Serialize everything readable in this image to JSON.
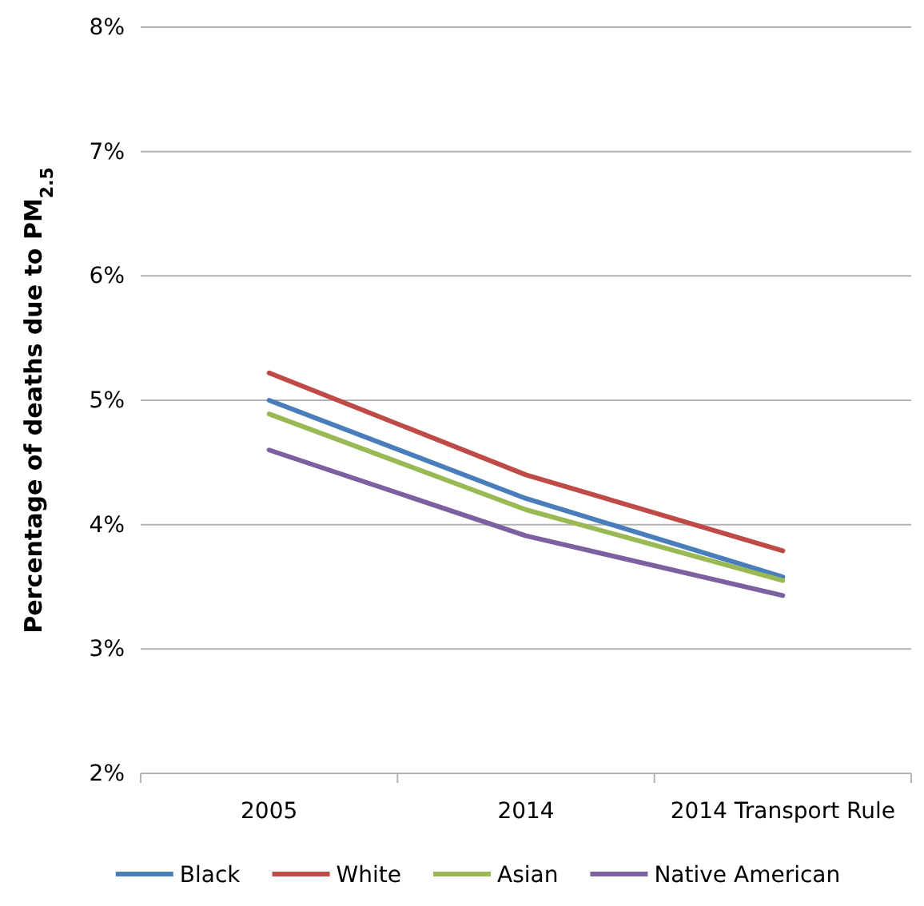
{
  "chart_data": {
    "type": "line",
    "ylabel": "Percentage of deaths due to PM$_{2.5}$",
    "categories": [
      "2005",
      "2014",
      "2014 Transport Rule"
    ],
    "series": [
      {
        "name": "Black",
        "color": "#4a7ebb",
        "values": [
          5.0,
          4.21,
          3.58
        ]
      },
      {
        "name": "White",
        "color": "#be4b48",
        "values": [
          5.22,
          4.4,
          3.79
        ]
      },
      {
        "name": "Asian",
        "color": "#98b954",
        "values": [
          4.89,
          4.12,
          3.55
        ]
      },
      {
        "name": "Native American",
        "color": "#7d60a0",
        "values": [
          4.6,
          3.91,
          3.43
        ]
      }
    ],
    "ylim": [
      2,
      8
    ],
    "yticks": [
      {
        "value": 2,
        "label": "2%"
      },
      {
        "value": 3,
        "label": "3%"
      },
      {
        "value": 4,
        "label": "4%"
      },
      {
        "value": 5,
        "label": "5%"
      },
      {
        "value": 6,
        "label": "6%"
      },
      {
        "value": 7,
        "label": "7%"
      },
      {
        "value": 8,
        "label": "8%"
      }
    ],
    "grid": "y",
    "legend": "bottom",
    "marker": "none",
    "line_style": "solid"
  }
}
